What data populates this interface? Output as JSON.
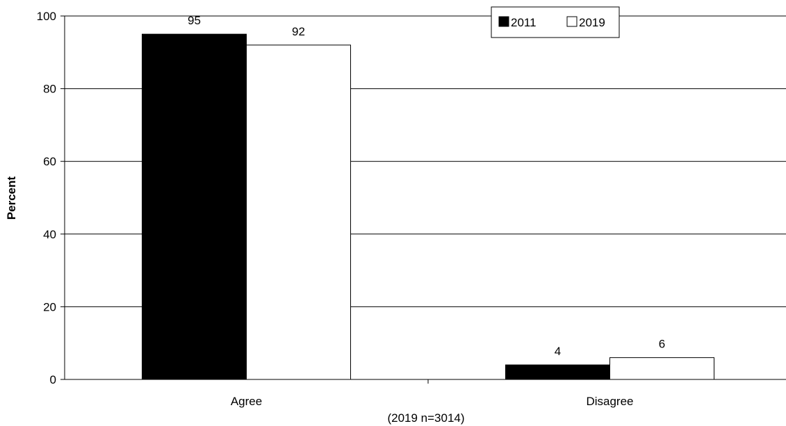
{
  "chart_data": {
    "type": "bar",
    "categories": [
      "Agree",
      "Disagree"
    ],
    "series": [
      {
        "name": "2011",
        "values": [
          95,
          4
        ],
        "color": "#000000"
      },
      {
        "name": "2019",
        "values": [
          92,
          6
        ],
        "color": "#ffffff"
      }
    ],
    "ylabel": "Percent",
    "xlabel": "",
    "ylim": [
      0,
      100
    ],
    "yticks": [
      0,
      20,
      40,
      60,
      80,
      100
    ],
    "grid": true,
    "legend": "top-right",
    "note": "(2019 n=3014)"
  }
}
